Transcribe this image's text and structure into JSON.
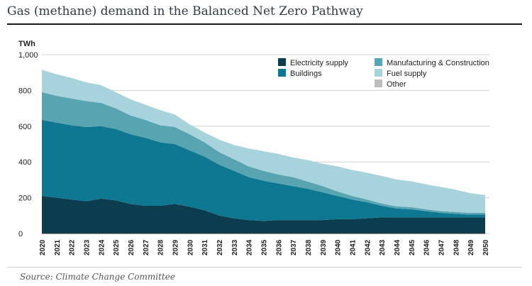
{
  "header": {
    "title": "Gas (methane) demand in the Balanced Net Zero Pathway"
  },
  "footer": {
    "source": "Source: Climate Change Committee"
  },
  "colors": {
    "Electricity supply": "#0b3d4f",
    "Buildings": "#0e7892",
    "Manufacturing & Construction": "#58a4b1",
    "Fuel supply": "#a6d3dc",
    "Other": "#bdbdbd"
  },
  "chart_data": {
    "type": "area",
    "stacked": true,
    "title": "",
    "xlabel": "",
    "ylabel": "TWh",
    "ylim": [
      0,
      1000
    ],
    "yticks": [
      0,
      200,
      400,
      600,
      800,
      1000
    ],
    "y_tick_labels": [
      "0",
      "200",
      "400",
      "600",
      "800",
      "1,000"
    ],
    "grid": true,
    "legend_position": "top-right",
    "x": [
      "2020",
      "2021",
      "2022",
      "2023",
      "2024",
      "2025",
      "2026",
      "2027",
      "2028",
      "2029",
      "2030",
      "2031",
      "2032",
      "2033",
      "2034",
      "2035",
      "2036",
      "2037",
      "2038",
      "2039",
      "2040",
      "2041",
      "2042",
      "2043",
      "2044",
      "2045",
      "2046",
      "2047",
      "2048",
      "2049",
      "2050"
    ],
    "series": [
      {
        "name": "Electricity supply",
        "values": [
          210,
          200,
          190,
          180,
          195,
          185,
          165,
          155,
          155,
          165,
          150,
          130,
          100,
          85,
          75,
          70,
          75,
          75,
          75,
          75,
          80,
          80,
          85,
          90,
          90,
          90,
          90,
          90,
          90,
          90,
          90
        ]
      },
      {
        "name": "Buildings",
        "values": [
          425,
          420,
          415,
          415,
          405,
          400,
          390,
          380,
          355,
          335,
          315,
          300,
          285,
          265,
          240,
          225,
          205,
          190,
          175,
          155,
          130,
          110,
          90,
          65,
          50,
          45,
          35,
          25,
          20,
          15,
          15
        ]
      },
      {
        "name": "Manufacturing & Construction",
        "values": [
          155,
          150,
          150,
          145,
          130,
          115,
          105,
          100,
          95,
          95,
          90,
          80,
          70,
          65,
          60,
          55,
          50,
          50,
          40,
          35,
          25,
          20,
          15,
          12,
          12,
          12,
          10,
          10,
          10,
          10,
          10
        ]
      },
      {
        "name": "Fuel supply",
        "values": [
          125,
          120,
          115,
          105,
          100,
          90,
          90,
          85,
          85,
          70,
          55,
          55,
          70,
          80,
          100,
          110,
          115,
          110,
          120,
          125,
          140,
          145,
          150,
          155,
          150,
          145,
          140,
          135,
          125,
          110,
          100
        ]
      },
      {
        "name": "Other",
        "values": [
          0,
          0,
          0,
          0,
          0,
          0,
          0,
          0,
          0,
          0,
          0,
          0,
          0,
          0,
          0,
          0,
          0,
          0,
          0,
          0,
          0,
          0,
          0,
          0,
          0,
          0,
          0,
          0,
          0,
          0,
          0
        ]
      }
    ]
  }
}
